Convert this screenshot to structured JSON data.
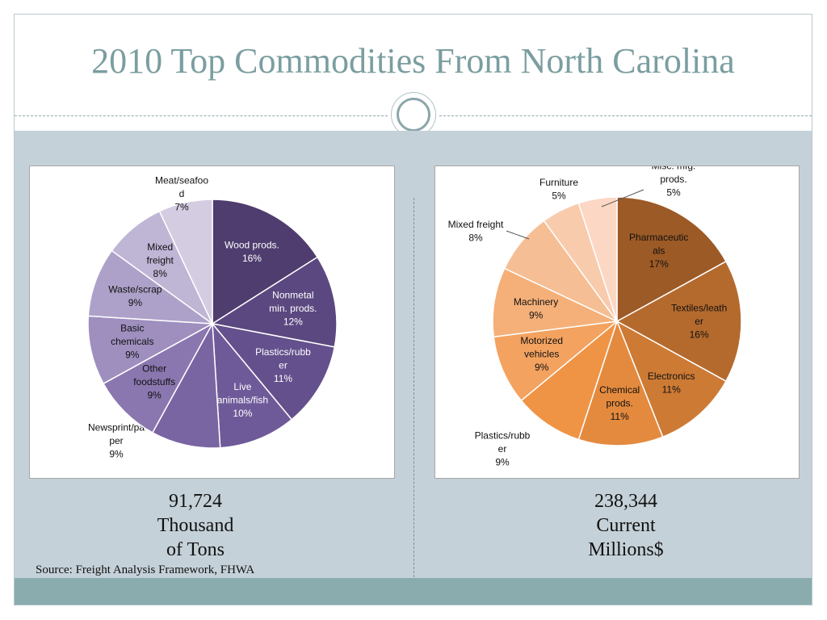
{
  "slide": {
    "title": "2010 Top Commodities From North Carolina",
    "source": "Source: Freight Analysis Framework, FHWA"
  },
  "totals": {
    "left": [
      "91,724",
      "Thousand",
      "of Tons"
    ],
    "right": [
      "238,344",
      "Current",
      "Millions$"
    ]
  },
  "colors": {
    "title": "#7b9ea0",
    "content_bg": "#c5d1d8",
    "footer_band": "#8aacaf"
  },
  "chart_data": [
    {
      "type": "pie",
      "title": "",
      "unit": "Thousand of Tons",
      "total": "91,724",
      "slices": [
        {
          "label": "Wood prods.",
          "value": 16,
          "label_lines": [
            "Wood prods.",
            "16%"
          ],
          "color": "#4e3d6e",
          "text_color": "#ffffff"
        },
        {
          "label": "Nonmetal min. prods.",
          "value": 12,
          "label_lines": [
            "Nonmetal",
            "min. prods.",
            "12%"
          ],
          "color": "#5b4880",
          "text_color": "#ffffff"
        },
        {
          "label": "Plastics/rubber",
          "value": 11,
          "label_lines": [
            "Plastics/rubb",
            "er",
            "11%"
          ],
          "color": "#64508c",
          "text_color": "#ffffff"
        },
        {
          "label": "Live animals/fish",
          "value": 10,
          "label_lines": [
            "Live",
            "animals/fish",
            "10%"
          ],
          "color": "#6f5a99",
          "text_color": "#ffffff"
        },
        {
          "label": "Newsprint/paper",
          "value": 9,
          "label_lines": [
            "Newsprint/pa",
            "per",
            "9%"
          ],
          "color": "#7a65a3",
          "text_color": "#111111",
          "outside": true
        },
        {
          "label": "Other foodstuffs",
          "value": 9,
          "label_lines": [
            "Other",
            "foodstuffs",
            "9%"
          ],
          "color": "#8a77b0",
          "text_color": "#111111"
        },
        {
          "label": "Basic chemicals",
          "value": 9,
          "label_lines": [
            "Basic",
            "chemicals",
            "9%"
          ],
          "color": "#9e8fbf",
          "text_color": "#111111"
        },
        {
          "label": "Waste/scrap",
          "value": 9,
          "label_lines": [
            "Waste/scrap",
            "9%"
          ],
          "color": "#ada1c9",
          "text_color": "#111111"
        },
        {
          "label": "Mixed freight",
          "value": 8,
          "label_lines": [
            "Mixed",
            "freight",
            "8%"
          ],
          "color": "#bfb5d5",
          "text_color": "#111111"
        },
        {
          "label": "Meat/seafood",
          "value": 7,
          "label_lines": [
            "Meat/seafoo",
            "d",
            "7%"
          ],
          "color": "#d4cde2",
          "text_color": "#111111",
          "outside": true
        }
      ]
    },
    {
      "type": "pie",
      "title": "",
      "unit": "Current Millions$",
      "total": "238,344",
      "slices": [
        {
          "label": "Pharmaceuticals",
          "value": 17,
          "label_lines": [
            "Pharmaceutic",
            "als",
            "17%"
          ],
          "color": "#9c5a26",
          "text_color": "#111111"
        },
        {
          "label": "Textiles/leather",
          "value": 16,
          "label_lines": [
            "Textiles/leath",
            "er",
            "16%"
          ],
          "color": "#b56a2d",
          "text_color": "#111111"
        },
        {
          "label": "Electronics",
          "value": 11,
          "label_lines": [
            "Electronics",
            "11%"
          ],
          "color": "#cd7a35",
          "text_color": "#111111"
        },
        {
          "label": "Chemical prods.",
          "value": 11,
          "label_lines": [
            "Chemical",
            "prods.",
            "11%"
          ],
          "color": "#e48a3e",
          "text_color": "#111111"
        },
        {
          "label": "Plastics/rubber",
          "value": 9,
          "label_lines": [
            "Plastics/rubb",
            "er",
            "9%"
          ],
          "color": "#ef9445",
          "text_color": "#111111",
          "outside": true
        },
        {
          "label": "Motorized vehicles",
          "value": 9,
          "label_lines": [
            "Motorized",
            "vehicles",
            "9%"
          ],
          "color": "#f3a260",
          "text_color": "#111111"
        },
        {
          "label": "Machinery",
          "value": 9,
          "label_lines": [
            "Machinery",
            "9%"
          ],
          "color": "#f5b079",
          "text_color": "#111111"
        },
        {
          "label": "Mixed freight",
          "value": 8,
          "label_lines": [
            "Mixed freight",
            "8%"
          ],
          "color": "#f6be94",
          "text_color": "#111111",
          "outside": true
        },
        {
          "label": "Furniture",
          "value": 5,
          "label_lines": [
            "Furniture",
            "5%"
          ],
          "color": "#f8cbad",
          "text_color": "#111111",
          "outside": true
        },
        {
          "label": "Misc. mfg. prods.",
          "value": 5,
          "label_lines": [
            "Misc. mfg.",
            "prods.",
            "5%"
          ],
          "color": "#fbd7c4",
          "text_color": "#111111",
          "outside": true
        }
      ]
    }
  ]
}
